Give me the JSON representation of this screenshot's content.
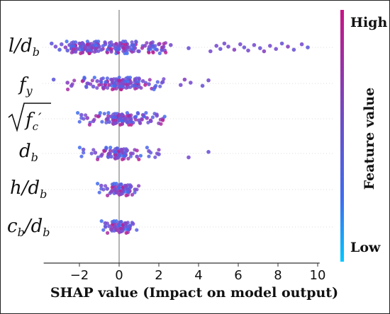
{
  "chart_data": {
    "type": "scatter",
    "subtype": "beeswarm",
    "xlabel": "SHAP value (Impact on model output)",
    "xticks": [
      -2,
      0,
      2,
      4,
      6,
      8,
      10
    ],
    "xlim": [
      -3.8,
      10.1
    ],
    "features": [
      "l/d_b",
      "f_y",
      "sqrt(f_c')",
      "d_b",
      "h/d_b",
      "c_b/d_b"
    ],
    "colorbar": {
      "title": "Feature value",
      "high_label": "High",
      "low_label": "Low",
      "low_color": "#00c8ff",
      "mid_color": "#6a5acd",
      "high_color": "#c71585"
    },
    "series": [
      {
        "name": "l/d_b",
        "points": [
          [
            -3.4,
            0.3
          ],
          [
            -3.2,
            0.5
          ],
          [
            -3.0,
            0.2
          ],
          [
            -2.9,
            0.4
          ],
          [
            -2.7,
            0.6
          ],
          [
            -2.6,
            0.3
          ],
          [
            -2.5,
            0.5
          ],
          [
            -2.4,
            0.2
          ],
          [
            -2.3,
            0.7
          ],
          [
            -2.2,
            0.4
          ],
          [
            -2.1,
            0.6
          ],
          [
            -2.0,
            0.5
          ],
          [
            -1.9,
            0.3
          ],
          [
            -1.8,
            0.8
          ],
          [
            -1.8,
            0.4
          ],
          [
            -1.7,
            0.6
          ],
          [
            -1.6,
            0.5
          ],
          [
            -1.5,
            0.3
          ],
          [
            -1.4,
            0.7
          ],
          [
            -1.4,
            0.5
          ],
          [
            -1.3,
            0.6
          ],
          [
            -1.2,
            0.4
          ],
          [
            -1.1,
            0.6
          ],
          [
            -1.0,
            0.5
          ],
          [
            -0.9,
            0.4
          ],
          [
            -0.7,
            0.3
          ],
          [
            -0.5,
            0.6
          ],
          [
            -0.4,
            0.4
          ],
          [
            -0.3,
            0.5
          ],
          [
            -0.2,
            0.3
          ],
          [
            -0.1,
            0.7
          ],
          [
            0.0,
            0.5
          ],
          [
            0.0,
            0.2
          ],
          [
            0.1,
            0.6
          ],
          [
            0.2,
            0.4
          ],
          [
            0.3,
            0.7
          ],
          [
            0.4,
            0.5
          ],
          [
            0.5,
            0.3
          ],
          [
            0.6,
            0.6
          ],
          [
            0.7,
            0.4
          ],
          [
            0.8,
            0.5
          ],
          [
            1.0,
            0.3
          ],
          [
            1.3,
            0.6
          ],
          [
            1.5,
            0.4
          ],
          [
            1.6,
            0.5
          ],
          [
            1.7,
            0.2
          ],
          [
            1.9,
            0.5
          ],
          [
            2.0,
            0.6
          ],
          [
            2.2,
            0.4
          ],
          [
            2.3,
            0.5
          ],
          [
            2.6,
            0.5
          ],
          [
            3.5,
            0.4
          ],
          [
            4.6,
            0.5
          ],
          [
            4.9,
            0.5
          ],
          [
            5.1,
            0.4
          ],
          [
            5.3,
            0.5
          ],
          [
            5.5,
            0.5
          ],
          [
            5.8,
            0.6
          ],
          [
            6.1,
            0.5
          ],
          [
            6.3,
            0.4
          ],
          [
            6.5,
            0.5
          ],
          [
            6.8,
            0.5
          ],
          [
            7.1,
            0.4
          ],
          [
            7.3,
            0.6
          ],
          [
            7.6,
            0.5
          ],
          [
            7.9,
            0.5
          ],
          [
            8.2,
            0.4
          ],
          [
            8.5,
            0.6
          ],
          [
            8.8,
            0.4
          ],
          [
            9.2,
            0.5
          ],
          [
            9.5,
            0.3
          ]
        ]
      },
      {
        "name": "f_y",
        "points": [
          [
            -3.3,
            0.3
          ],
          [
            -2.6,
            0.6
          ],
          [
            -2.4,
            0.5
          ],
          [
            -1.8,
            0.3
          ],
          [
            -1.6,
            0.6
          ],
          [
            -1.3,
            0.4
          ],
          [
            -1.1,
            0.5
          ],
          [
            -0.9,
            0.7
          ],
          [
            -0.8,
            0.3
          ],
          [
            -0.6,
            0.5
          ],
          [
            -0.5,
            0.8
          ],
          [
            -0.4,
            0.4
          ],
          [
            -0.3,
            0.6
          ],
          [
            -0.2,
            0.3
          ],
          [
            -0.1,
            0.5
          ],
          [
            0.0,
            0.7
          ],
          [
            0.0,
            0.4
          ],
          [
            0.1,
            0.9
          ],
          [
            0.2,
            0.6
          ],
          [
            0.2,
            0.3
          ],
          [
            0.3,
            0.5
          ],
          [
            0.4,
            0.8
          ],
          [
            0.5,
            0.4
          ],
          [
            0.6,
            0.6
          ],
          [
            0.7,
            0.3
          ],
          [
            0.8,
            0.5
          ],
          [
            0.9,
            0.7
          ],
          [
            1.0,
            0.4
          ],
          [
            1.2,
            0.5
          ],
          [
            1.5,
            0.4
          ],
          [
            1.8,
            0.5
          ],
          [
            2.2,
            0.5
          ],
          [
            3.1,
            0.5
          ],
          [
            3.3,
            0.6
          ],
          [
            3.6,
            0.5
          ],
          [
            4.2,
            0.4
          ],
          [
            4.5,
            0.5
          ]
        ]
      },
      {
        "name": "sqrt(f_c')",
        "points": [
          [
            -1.9,
            0.4
          ],
          [
            -1.6,
            0.6
          ],
          [
            -1.3,
            0.5
          ],
          [
            -1.0,
            0.4
          ],
          [
            -0.6,
            0.6
          ],
          [
            -0.5,
            0.3
          ],
          [
            -0.4,
            0.5
          ],
          [
            -0.3,
            0.7
          ],
          [
            -0.2,
            0.4
          ],
          [
            -0.1,
            0.6
          ],
          [
            0.0,
            0.3
          ],
          [
            0.0,
            0.8
          ],
          [
            0.1,
            0.5
          ],
          [
            0.2,
            0.3
          ],
          [
            0.2,
            0.7
          ],
          [
            0.3,
            0.5
          ],
          [
            0.4,
            0.4
          ],
          [
            0.5,
            0.6
          ],
          [
            0.6,
            0.5
          ],
          [
            0.7,
            0.3
          ],
          [
            0.8,
            0.6
          ],
          [
            1.0,
            0.5
          ],
          [
            1.2,
            0.4
          ],
          [
            1.4,
            0.6
          ],
          [
            1.6,
            0.5
          ],
          [
            1.9,
            0.5
          ],
          [
            2.2,
            0.5
          ]
        ]
      },
      {
        "name": "d_b",
        "points": [
          [
            -1.8,
            0.4
          ],
          [
            -1.2,
            0.5
          ],
          [
            -0.9,
            0.5
          ],
          [
            -0.7,
            0.4
          ],
          [
            -0.5,
            0.6
          ],
          [
            -0.4,
            0.3
          ],
          [
            -0.3,
            0.5
          ],
          [
            -0.2,
            0.7
          ],
          [
            -0.1,
            0.4
          ],
          [
            0.0,
            0.6
          ],
          [
            0.0,
            0.3
          ],
          [
            0.1,
            0.5
          ],
          [
            0.2,
            0.7
          ],
          [
            0.3,
            0.4
          ],
          [
            0.4,
            0.5
          ],
          [
            0.6,
            0.6
          ],
          [
            0.9,
            0.5
          ],
          [
            1.5,
            0.5
          ],
          [
            2.0,
            0.4
          ],
          [
            3.5,
            0.5
          ],
          [
            4.5,
            0.4
          ]
        ]
      },
      {
        "name": "h/d_b",
        "points": [
          [
            -0.9,
            0.5
          ],
          [
            -0.6,
            0.4
          ],
          [
            -0.4,
            0.6
          ],
          [
            -0.3,
            0.5
          ],
          [
            -0.2,
            0.3
          ],
          [
            -0.1,
            0.6
          ],
          [
            0.0,
            0.4
          ],
          [
            0.0,
            0.7
          ],
          [
            0.1,
            0.5
          ],
          [
            0.2,
            0.3
          ],
          [
            0.2,
            0.6
          ],
          [
            0.3,
            0.5
          ],
          [
            0.4,
            0.4
          ],
          [
            0.5,
            0.6
          ],
          [
            0.6,
            0.5
          ],
          [
            0.8,
            0.5
          ]
        ]
      },
      {
        "name": "c_b/d_b",
        "points": [
          [
            -0.7,
            0.5
          ],
          [
            -0.5,
            0.4
          ],
          [
            -0.4,
            0.6
          ],
          [
            -0.3,
            0.5
          ],
          [
            -0.2,
            0.3
          ],
          [
            -0.1,
            0.7
          ],
          [
            0.0,
            0.4
          ],
          [
            0.0,
            0.6
          ],
          [
            0.1,
            0.5
          ],
          [
            0.2,
            0.3
          ],
          [
            0.2,
            0.7
          ],
          [
            0.3,
            0.5
          ],
          [
            0.4,
            0.4
          ],
          [
            0.5,
            0.6
          ],
          [
            0.7,
            0.5
          ]
        ]
      }
    ]
  }
}
